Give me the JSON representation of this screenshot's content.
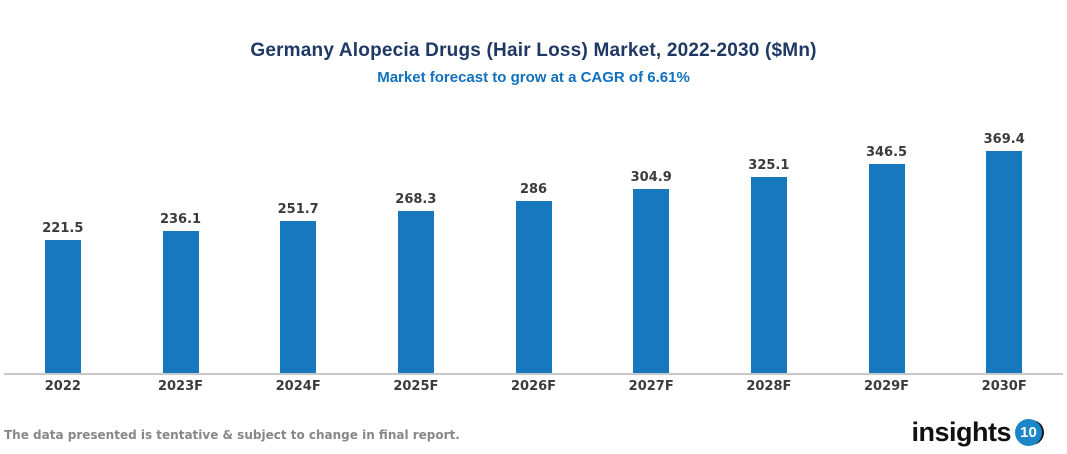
{
  "chart_data": {
    "type": "bar",
    "title": "Germany Alopecia Drugs (Hair Loss) Market, 2022-2030 ($Mn)",
    "subtitle": "Market forecast to grow at a CAGR of 6.61%",
    "categories": [
      "2022",
      "2023F",
      "2024F",
      "2025F",
      "2026F",
      "2027F",
      "2028F",
      "2029F",
      "2030F"
    ],
    "values": [
      221.5,
      236.1,
      251.7,
      268.3,
      286,
      304.9,
      325.1,
      346.5,
      369.4
    ],
    "value_labels": [
      "221.5",
      "236.1",
      "251.7",
      "268.3",
      "286",
      "304.9",
      "325.1",
      "346.5",
      "369.4"
    ],
    "xlabel": "",
    "ylabel": "",
    "ylim": [
      0,
      400
    ],
    "grid": false,
    "legend": false,
    "bar_color": "#1878BE",
    "title_color": "#1F3864",
    "subtitle_color": "#1170C0",
    "label_color": "#3B3B3B",
    "axis_line_color": "#C8C8C8"
  },
  "footer": {
    "disclaimer": "The data presented is tentative & subject to change in final report.",
    "logo": {
      "text": "insights",
      "badge": "10",
      "badge_color": "#1B87C9"
    }
  }
}
